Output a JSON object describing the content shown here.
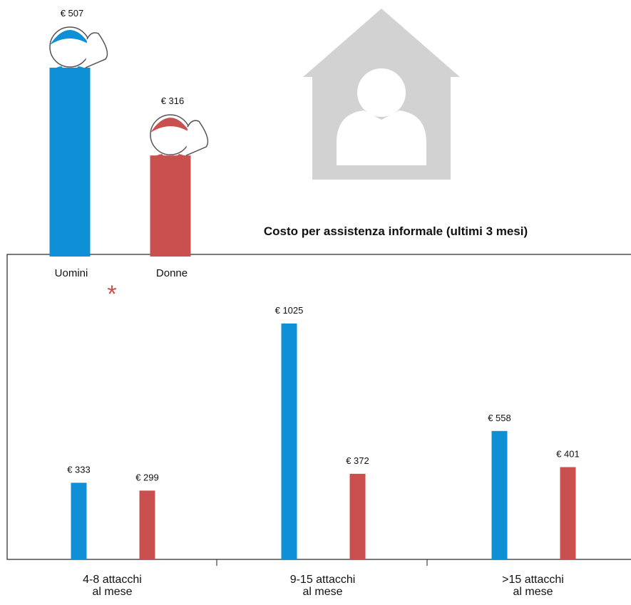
{
  "chart_data": [
    {
      "type": "pictogram-bar",
      "categories": [
        "Uomini",
        "Donne"
      ],
      "values": [
        507,
        316
      ],
      "value_labels": [
        "€ 507",
        "€ 316"
      ],
      "colors": [
        "#0e8fd6",
        "#c9504f"
      ],
      "annotation": "*"
    },
    {
      "type": "bar",
      "title": "Costo per assistenza informale (ultimi 3 mesi)",
      "categories": [
        "4-8 attacchi\nal mese",
        "9-15 attacchi\nal mese",
        ">15 attacchi\nal mese"
      ],
      "series": [
        {
          "color": "#0e8fd6",
          "values": [
            333,
            1025,
            558
          ],
          "value_labels": [
            "€ 333",
            "€ 1025",
            "€ 558"
          ]
        },
        {
          "color": "#c9504f",
          "values": [
            299,
            372,
            401
          ],
          "value_labels": [
            "€ 299",
            "€ 372",
            "€ 401"
          ]
        }
      ]
    }
  ]
}
